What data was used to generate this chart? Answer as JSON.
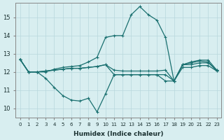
{
  "xlabel": "Humidex (Indice chaleur)",
  "bg_color": "#d8eef0",
  "line_color": "#1a7070",
  "grid_color": "#b8d8dc",
  "xlim": [
    -0.5,
    23.5
  ],
  "ylim": [
    9.5,
    15.8
  ],
  "yticks": [
    10,
    11,
    12,
    13,
    14,
    15
  ],
  "xticks": [
    0,
    1,
    2,
    3,
    4,
    5,
    6,
    7,
    8,
    9,
    10,
    11,
    12,
    13,
    14,
    15,
    16,
    17,
    18,
    19,
    20,
    21,
    22,
    23
  ],
  "lines": [
    [
      12.7,
      12.0,
      12.0,
      12.0,
      12.15,
      12.25,
      12.3,
      12.35,
      12.55,
      12.8,
      13.9,
      14.0,
      14.0,
      15.15,
      15.6,
      15.15,
      14.85,
      13.9,
      11.5,
      12.4,
      12.55,
      12.65,
      12.65,
      12.1
    ],
    [
      12.7,
      12.0,
      12.0,
      12.05,
      12.1,
      12.15,
      12.2,
      12.2,
      12.25,
      12.3,
      12.4,
      12.1,
      12.05,
      12.05,
      12.05,
      12.05,
      12.05,
      12.1,
      11.5,
      12.4,
      12.4,
      12.5,
      12.5,
      12.1
    ],
    [
      12.7,
      12.0,
      12.0,
      12.05,
      12.1,
      12.15,
      12.2,
      12.2,
      12.25,
      12.3,
      12.4,
      11.85,
      11.85,
      11.85,
      11.85,
      11.85,
      11.85,
      11.85,
      11.5,
      12.25,
      12.25,
      12.35,
      12.35,
      12.05
    ],
    [
      12.7,
      12.0,
      12.0,
      11.65,
      11.15,
      10.7,
      10.45,
      10.4,
      10.55,
      9.8,
      10.8,
      11.85,
      11.85,
      11.85,
      11.85,
      11.85,
      11.85,
      11.5,
      11.5,
      12.4,
      12.5,
      12.6,
      12.55,
      12.05
    ]
  ]
}
